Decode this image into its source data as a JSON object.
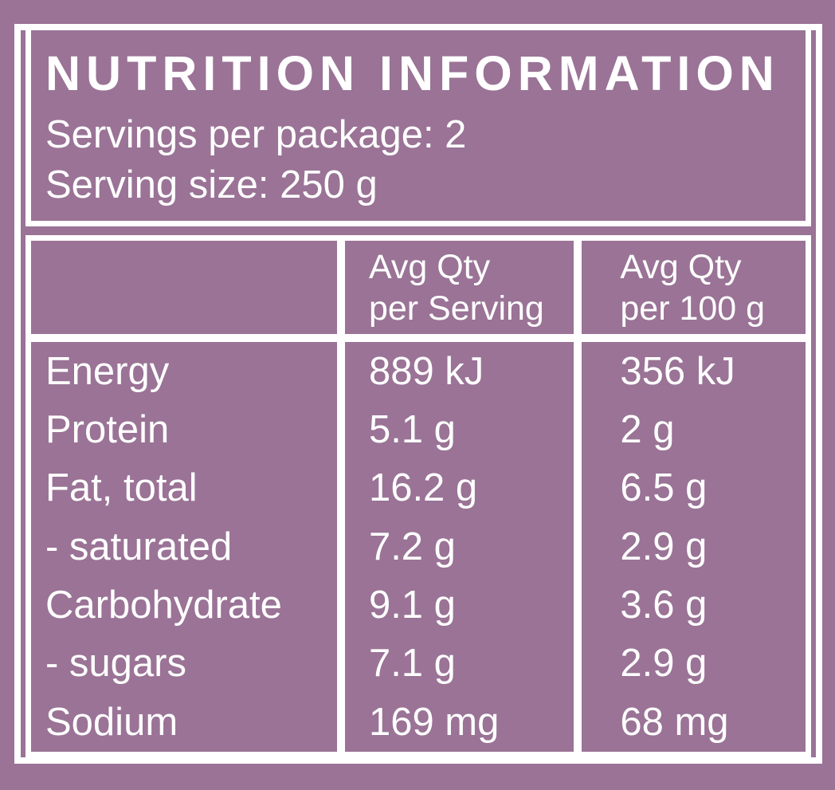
{
  "colors": {
    "background": "#9a7396",
    "border": "#ffffff",
    "text": "#ffffff"
  },
  "panel": {
    "title": "NUTRITION INFORMATION",
    "servings_per_package": "Servings per package: 2",
    "serving_size": "Serving size: 250 g"
  },
  "table": {
    "column_headers": [
      {
        "line1": "Avg Qty",
        "line2": "per Serving"
      },
      {
        "line1": "Avg Qty",
        "line2": "per 100 g"
      }
    ],
    "rows": [
      {
        "label": "Energy",
        "per_serving": "889 kJ",
        "per_100g": "356 kJ"
      },
      {
        "label": "Protein",
        "per_serving": "5.1 g",
        "per_100g": "2 g"
      },
      {
        "label": "Fat, total",
        "per_serving": "16.2 g",
        "per_100g": "6.5 g"
      },
      {
        "label": "- saturated",
        "per_serving": "7.2 g",
        "per_100g": "2.9 g"
      },
      {
        "label": "Carbohydrate",
        "per_serving": "9.1 g",
        "per_100g": "3.6 g"
      },
      {
        "label": "- sugars",
        "per_serving": "7.1 g",
        "per_100g": "2.9 g"
      },
      {
        "label": "Sodium",
        "per_serving": "169 mg",
        "per_100g": "68 mg"
      }
    ]
  }
}
